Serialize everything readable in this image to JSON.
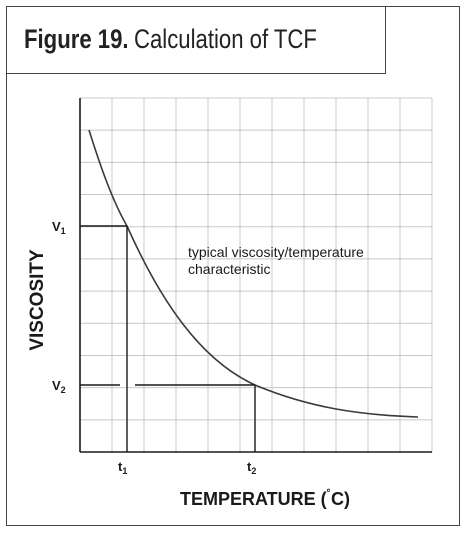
{
  "figure": {
    "number": "Figure 19.",
    "title": "Calculation of TCF"
  },
  "axes": {
    "ylabel": "VISCOSITY",
    "xlabel_main": "TEMPERATURE (",
    "xlabel_degree": "˚",
    "xlabel_unit": "C)"
  },
  "ticks": {
    "v1": {
      "base": "V",
      "sub": "1"
    },
    "v2": {
      "base": "V",
      "sub": "2"
    },
    "t1": {
      "base": "t",
      "sub": "1"
    },
    "t2": {
      "base": "t",
      "sub": "2"
    }
  },
  "annotation": {
    "line1": "typical viscosity/temperature",
    "line2": "characteristic"
  },
  "colors": {
    "grid": "#c8c8c8",
    "curve": "#3a3a3a",
    "axis": "#1a1a1a"
  }
}
